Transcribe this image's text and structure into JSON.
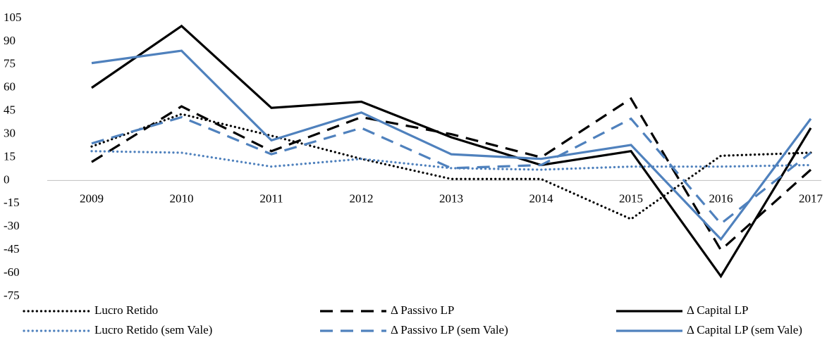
{
  "chart_data": {
    "type": "line",
    "categories": [
      "2009",
      "2010",
      "2011",
      "2012",
      "2013",
      "2014",
      "2015",
      "2016",
      "2017"
    ],
    "series": [
      {
        "name": "Lucro Retido",
        "color": "#000000",
        "dash": "dotted",
        "values": [
          22,
          43,
          29,
          14,
          1,
          1,
          -25,
          16,
          18
        ]
      },
      {
        "name": "Δ Passivo LP",
        "color": "#000000",
        "dash": "dashed",
        "values": [
          12,
          48,
          19,
          41,
          30,
          15,
          53,
          -45,
          7
        ]
      },
      {
        "name": "Δ Capital LP",
        "color": "#000000",
        "dash": "solid",
        "values": [
          60,
          100,
          47,
          51,
          28,
          10,
          19,
          -62,
          34
        ]
      },
      {
        "name": "Lucro Retido (sem Vale)",
        "color": "#4f81bd",
        "dash": "dotted",
        "values": [
          19,
          18,
          9,
          14,
          8,
          7,
          9,
          9,
          10
        ]
      },
      {
        "name": "Δ Passivo LP (sem Vale)",
        "color": "#4f81bd",
        "dash": "dashed",
        "values": [
          24,
          41,
          17,
          34,
          8,
          10,
          40,
          -28,
          18
        ]
      },
      {
        "name": "Δ Capital LP (sem Vale)",
        "color": "#4f81bd",
        "dash": "solid",
        "values": [
          76,
          84,
          26,
          44,
          17,
          14,
          23,
          -38,
          40
        ]
      }
    ],
    "ylim": [
      -75,
      105
    ],
    "yticks": [
      -75,
      -60,
      -45,
      -30,
      -15,
      0,
      15,
      30,
      45,
      60,
      75,
      90,
      105
    ],
    "legend": "bottom"
  }
}
